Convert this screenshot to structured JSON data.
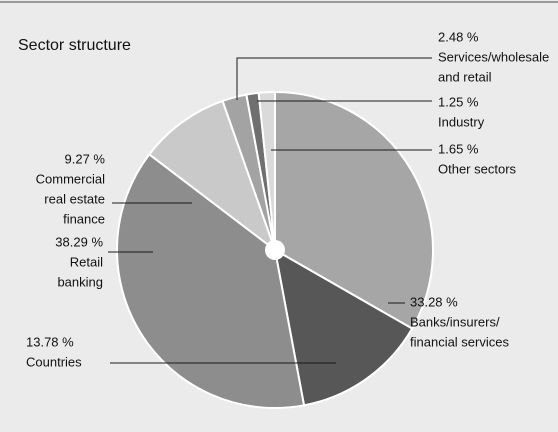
{
  "chart_data": {
    "type": "pie",
    "title": "Sector structure",
    "categories": [
      [
        "Banks/insurers/",
        "financial services"
      ],
      [
        "Countries"
      ],
      [
        "Retail",
        "banking"
      ],
      [
        "Commercial",
        "real estate",
        "finance"
      ],
      [
        "Services/wholesale",
        "and retail"
      ],
      [
        "Industry"
      ],
      [
        "Other sectors"
      ]
    ],
    "values": [
      33.28,
      13.78,
      38.29,
      9.27,
      2.48,
      1.25,
      1.65
    ],
    "value_labels": [
      "33.28 %",
      "13.78 %",
      "38.29 %",
      "9.27 %",
      "2.48 %",
      "1.25 %",
      "1.65 %"
    ],
    "colors": [
      "#a6a6a6",
      "#575757",
      "#8d8d8d",
      "#c9c9c9",
      "#a3a3a3",
      "#6f6f6f",
      "#dadada"
    ]
  }
}
